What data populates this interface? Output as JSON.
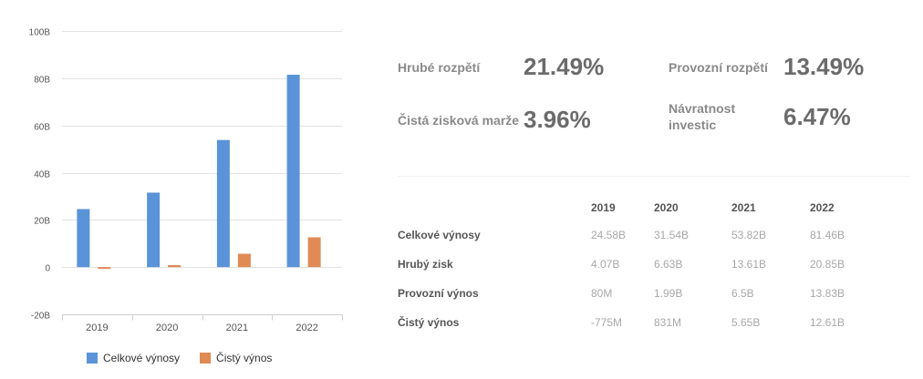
{
  "chart_data": {
    "type": "bar",
    "title": "",
    "xlabel": "",
    "ylabel": "",
    "categories": [
      "2019",
      "2020",
      "2021",
      "2022"
    ],
    "series": [
      {
        "name": "Celkové výnosy",
        "color": "#5b93d8",
        "values": [
          24.58,
          31.54,
          53.82,
          81.46
        ]
      },
      {
        "name": "Čistý výnos",
        "color": "#e08a55",
        "values": [
          -0.775,
          0.831,
          5.65,
          12.61
        ]
      }
    ],
    "y_ticks": [
      "100B",
      "80B",
      "60B",
      "40B",
      "20B",
      "0",
      "-20B"
    ],
    "ylim": [
      -20,
      100
    ],
    "unit": "B",
    "grid": true,
    "legend_position": "bottom"
  },
  "legend": {
    "items": [
      {
        "label": "Celkové výnosy",
        "color": "#5b93d8"
      },
      {
        "label": "Čistý výnos",
        "color": "#e08a55"
      }
    ]
  },
  "metrics": [
    {
      "label": "Hrubé rozpětí",
      "value": "21.49%"
    },
    {
      "label": "Provozní rozpětí",
      "value": "13.49%"
    },
    {
      "label": "Čistá zisková marže",
      "value": "3.96%"
    },
    {
      "label": "Návratnost investic",
      "value": "6.47%"
    }
  ],
  "table": {
    "headers": [
      "",
      "2019",
      "2020",
      "2021",
      "2022"
    ],
    "rows": [
      {
        "label": "Celkové výnosy",
        "values": [
          "24.58B",
          "31.54B",
          "53.82B",
          "81.46B"
        ]
      },
      {
        "label": "Hrubý zisk",
        "values": [
          "4.07B",
          "6.63B",
          "13.61B",
          "20.85B"
        ]
      },
      {
        "label": "Provozní výnos",
        "values": [
          "80M",
          "1.99B",
          "6.5B",
          "13.83B"
        ]
      },
      {
        "label": "Čistý výnos",
        "values": [
          "-775M",
          "831M",
          "5.65B",
          "12.61B"
        ]
      }
    ]
  }
}
